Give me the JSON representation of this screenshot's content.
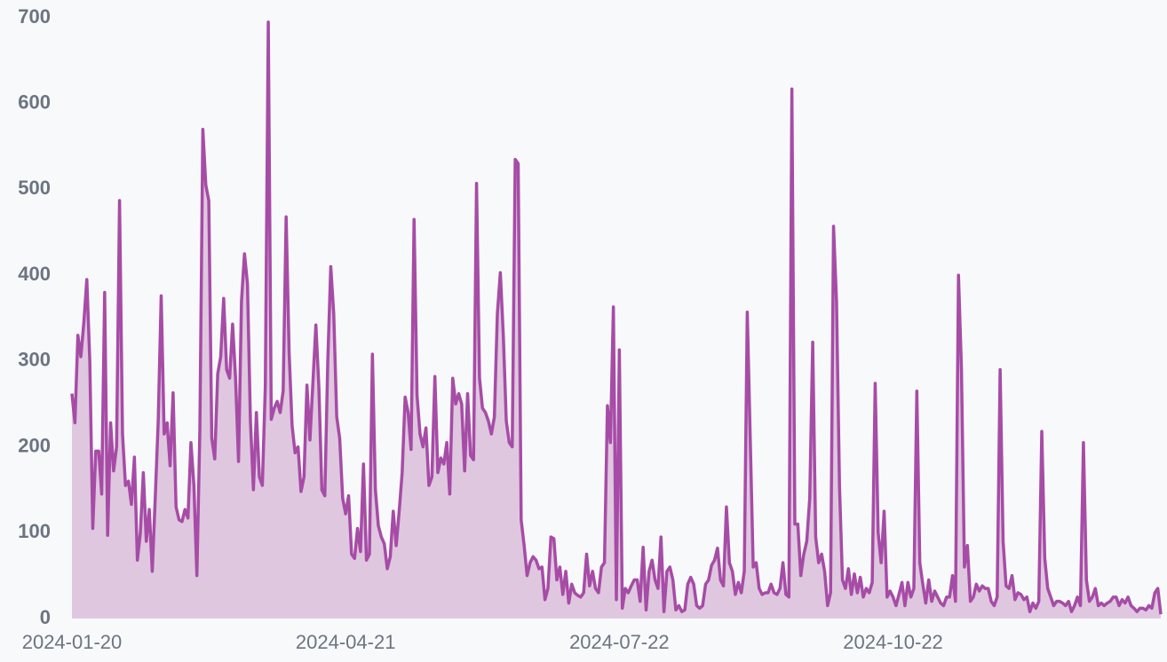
{
  "chart_data": {
    "type": "area",
    "color": "#a64ca6",
    "fill_color": "#dfc7e0",
    "xlim": [
      "2024-01-20",
      "2025-01-20"
    ],
    "xticks": [
      "2024-01-20",
      "2024-04-21",
      "2024-07-22",
      "2024-10-22"
    ],
    "ylim": [
      0,
      700
    ],
    "yticks": [
      0,
      100,
      200,
      300,
      400,
      500,
      600,
      700
    ],
    "x": [
      "2024-01-20",
      "2024-01-21",
      "2024-01-22",
      "2024-01-23",
      "2024-01-24",
      "2024-01-25",
      "2024-01-26",
      "2024-01-27",
      "2024-01-28",
      "2024-01-29",
      "2024-01-30",
      "2024-01-31",
      "2024-02-01",
      "2024-02-02",
      "2024-02-03",
      "2024-02-04",
      "2024-02-05",
      "2024-02-06",
      "2024-02-07",
      "2024-02-08",
      "2024-02-09",
      "2024-02-10",
      "2024-02-11",
      "2024-02-12",
      "2024-02-13",
      "2024-02-14",
      "2024-02-15",
      "2024-02-16",
      "2024-02-17",
      "2024-02-18",
      "2024-02-19",
      "2024-02-20",
      "2024-02-21",
      "2024-02-22",
      "2024-02-23",
      "2024-02-24",
      "2024-02-25",
      "2024-02-26",
      "2024-02-27",
      "2024-02-28",
      "2024-02-29",
      "2024-03-01",
      "2024-03-02",
      "2024-03-03",
      "2024-03-04",
      "2024-03-05",
      "2024-03-06",
      "2024-03-07",
      "2024-03-08",
      "2024-03-09",
      "2024-03-10",
      "2024-03-11",
      "2024-03-12",
      "2024-03-13",
      "2024-03-14",
      "2024-03-15",
      "2024-03-16",
      "2024-03-17",
      "2024-03-18",
      "2024-03-19",
      "2024-03-20",
      "2024-03-21",
      "2024-03-22",
      "2024-03-23",
      "2024-03-24",
      "2024-03-25",
      "2024-03-26",
      "2024-03-27",
      "2024-03-28",
      "2024-03-29",
      "2024-03-30",
      "2024-03-31",
      "2024-04-01",
      "2024-04-02",
      "2024-04-03",
      "2024-04-04",
      "2024-04-05",
      "2024-04-06",
      "2024-04-07",
      "2024-04-08",
      "2024-04-09",
      "2024-04-10",
      "2024-04-11",
      "2024-04-12",
      "2024-04-13",
      "2024-04-14",
      "2024-04-15",
      "2024-04-16",
      "2024-04-17",
      "2024-04-18",
      "2024-04-19",
      "2024-04-20",
      "2024-04-21",
      "2024-04-22",
      "2024-04-23",
      "2024-04-24",
      "2024-04-25",
      "2024-04-26",
      "2024-04-27",
      "2024-04-28",
      "2024-04-29",
      "2024-04-30",
      "2024-05-01",
      "2024-05-02",
      "2024-05-03",
      "2024-05-04",
      "2024-05-05",
      "2024-05-06",
      "2024-05-07",
      "2024-05-08",
      "2024-05-09",
      "2024-05-10",
      "2024-05-11",
      "2024-05-12",
      "2024-05-13",
      "2024-05-14",
      "2024-05-15",
      "2024-05-16",
      "2024-05-17",
      "2024-05-18",
      "2024-05-19",
      "2024-05-20",
      "2024-05-21",
      "2024-05-22",
      "2024-05-23",
      "2024-05-24",
      "2024-05-25",
      "2024-05-26",
      "2024-05-27",
      "2024-05-28",
      "2024-05-29",
      "2024-05-30",
      "2024-05-31",
      "2024-06-01",
      "2024-06-02",
      "2024-06-03",
      "2024-06-04",
      "2024-06-05",
      "2024-06-06",
      "2024-06-07",
      "2024-06-08",
      "2024-06-09",
      "2024-06-10",
      "2024-06-11",
      "2024-06-12",
      "2024-06-13",
      "2024-06-14",
      "2024-06-15",
      "2024-06-16",
      "2024-06-17",
      "2024-06-18",
      "2024-06-19",
      "2024-06-20",
      "2024-06-21",
      "2024-06-22",
      "2024-06-23",
      "2024-06-24",
      "2024-06-25",
      "2024-06-26",
      "2024-06-27",
      "2024-06-28",
      "2024-06-29",
      "2024-06-30",
      "2024-07-01",
      "2024-07-02",
      "2024-07-03",
      "2024-07-04",
      "2024-07-05",
      "2024-07-06",
      "2024-07-07",
      "2024-07-08",
      "2024-07-09",
      "2024-07-10",
      "2024-07-11",
      "2024-07-12",
      "2024-07-13",
      "2024-07-14",
      "2024-07-15",
      "2024-07-16",
      "2024-07-17",
      "2024-07-18",
      "2024-07-19",
      "2024-07-20",
      "2024-07-21",
      "2024-07-22",
      "2024-07-23",
      "2024-07-24",
      "2024-07-25",
      "2024-07-26",
      "2024-07-27",
      "2024-07-28",
      "2024-07-29",
      "2024-07-30",
      "2024-07-31",
      "2024-08-01",
      "2024-08-02",
      "2024-08-03",
      "2024-08-04",
      "2024-08-05",
      "2024-08-06",
      "2024-08-07",
      "2024-08-08",
      "2024-08-09",
      "2024-08-10",
      "2024-08-11",
      "2024-08-12",
      "2024-08-13",
      "2024-08-14",
      "2024-08-15",
      "2024-08-16",
      "2024-08-17",
      "2024-08-18",
      "2024-08-19",
      "2024-08-20",
      "2024-08-21",
      "2024-08-22",
      "2024-08-23",
      "2024-08-24",
      "2024-08-25",
      "2024-08-26",
      "2024-08-27",
      "2024-08-28",
      "2024-08-29",
      "2024-08-30",
      "2024-08-31",
      "2024-09-01",
      "2024-09-02",
      "2024-09-03",
      "2024-09-04",
      "2024-09-05",
      "2024-09-06",
      "2024-09-07",
      "2024-09-08",
      "2024-09-09",
      "2024-09-10",
      "2024-09-11",
      "2024-09-12",
      "2024-09-13",
      "2024-09-14",
      "2024-09-15",
      "2024-09-16",
      "2024-09-17",
      "2024-09-18",
      "2024-09-19",
      "2024-09-20",
      "2024-09-21",
      "2024-09-22",
      "2024-09-23",
      "2024-09-24",
      "2024-09-25",
      "2024-09-26",
      "2024-09-27",
      "2024-09-28",
      "2024-09-29",
      "2024-09-30",
      "2024-10-01",
      "2024-10-02",
      "2024-10-03",
      "2024-10-04",
      "2024-10-05",
      "2024-10-06",
      "2024-10-07",
      "2024-10-08",
      "2024-10-09",
      "2024-10-10",
      "2024-10-11",
      "2024-10-12",
      "2024-10-13",
      "2024-10-14",
      "2024-10-15",
      "2024-10-16",
      "2024-10-17",
      "2024-10-18",
      "2024-10-19",
      "2024-10-20",
      "2024-10-21",
      "2024-10-22",
      "2024-10-23",
      "2024-10-24",
      "2024-10-25",
      "2024-10-26",
      "2024-10-27",
      "2024-10-28",
      "2024-10-29",
      "2024-10-30",
      "2024-10-31",
      "2024-11-01",
      "2024-11-02",
      "2024-11-03",
      "2024-11-04",
      "2024-11-05",
      "2024-11-06",
      "2024-11-07",
      "2024-11-08",
      "2024-11-09",
      "2024-11-10",
      "2024-11-11",
      "2024-11-12",
      "2024-11-13",
      "2024-11-14",
      "2024-11-15",
      "2024-11-16",
      "2024-11-17",
      "2024-11-18",
      "2024-11-19",
      "2024-11-20",
      "2024-11-21",
      "2024-11-22",
      "2024-11-23",
      "2024-11-24",
      "2024-11-25",
      "2024-11-26",
      "2024-11-27",
      "2024-11-28",
      "2024-11-29",
      "2024-11-30",
      "2024-12-01",
      "2024-12-02",
      "2024-12-03",
      "2024-12-04",
      "2024-12-05",
      "2024-12-06",
      "2024-12-07",
      "2024-12-08",
      "2024-12-09",
      "2024-12-10",
      "2024-12-11",
      "2024-12-12",
      "2024-12-13",
      "2024-12-14",
      "2024-12-15",
      "2024-12-16",
      "2024-12-17",
      "2024-12-18",
      "2024-12-19",
      "2024-12-20",
      "2024-12-21",
      "2024-12-22",
      "2024-12-23",
      "2024-12-24",
      "2024-12-25",
      "2024-12-26",
      "2024-12-27",
      "2024-12-28",
      "2024-12-29",
      "2024-12-30",
      "2024-12-31",
      "2025-01-01",
      "2025-01-02",
      "2025-01-03",
      "2025-01-04",
      "2025-01-05",
      "2025-01-06",
      "2025-01-07",
      "2025-01-08",
      "2025-01-09",
      "2025-01-10",
      "2025-01-11",
      "2025-01-12",
      "2025-01-13",
      "2025-01-14",
      "2025-01-15",
      "2025-01-16",
      "2025-01-17",
      "2025-01-18",
      "2025-01-19",
      "2025-01-20"
    ],
    "values": [
      262,
      228,
      330,
      305,
      345,
      395,
      300,
      105,
      195,
      195,
      145,
      380,
      97,
      228,
      172,
      200,
      487,
      215,
      155,
      160,
      133,
      188,
      68,
      100,
      170,
      90,
      127,
      55,
      140,
      230,
      376,
      215,
      228,
      178,
      263,
      130,
      115,
      113,
      127,
      117,
      205,
      155,
      50,
      220,
      570,
      505,
      487,
      210,
      186,
      285,
      305,
      373,
      290,
      280,
      343,
      280,
      183,
      370,
      425,
      390,
      230,
      150,
      240,
      165,
      155,
      270,
      695,
      232,
      245,
      253,
      240,
      265,
      468,
      310,
      225,
      193,
      200,
      148,
      165,
      272,
      208,
      275,
      342,
      270,
      150,
      143,
      300,
      410,
      355,
      235,
      210,
      140,
      122,
      143,
      75,
      70,
      105,
      78,
      180,
      68,
      75,
      308,
      150,
      108,
      95,
      87,
      58,
      72,
      125,
      85,
      125,
      170,
      258,
      240,
      197,
      465,
      260,
      215,
      200,
      222,
      155,
      165,
      282,
      170,
      187,
      180,
      205,
      145,
      280,
      250,
      262,
      250,
      172,
      262,
      190,
      185,
      507,
      280,
      245,
      240,
      230,
      215,
      235,
      355,
      403,
      330,
      230,
      205,
      200,
      535,
      530,
      115,
      85,
      50,
      65,
      72,
      68,
      58,
      60,
      22,
      35,
      95,
      93,
      45,
      60,
      28,
      55,
      18,
      40,
      30,
      27,
      25,
      30,
      75,
      38,
      55,
      35,
      30,
      60,
      65,
      248,
      205,
      363,
      22,
      313,
      12,
      35,
      30,
      38,
      45,
      45,
      20,
      83,
      10,
      55,
      68,
      45,
      35,
      95,
      8,
      55,
      60,
      45,
      10,
      15,
      8,
      10,
      40,
      48,
      40,
      15,
      12,
      15,
      40,
      45,
      62,
      68,
      82,
      45,
      38,
      130,
      65,
      55,
      28,
      42,
      30,
      55,
      357,
      210,
      60,
      65,
      35,
      28,
      30,
      30,
      40,
      30,
      28,
      35,
      65,
      28,
      25,
      617,
      110,
      110,
      50,
      75,
      90,
      140,
      322,
      95,
      65,
      75,
      55,
      15,
      30,
      457,
      370,
      155,
      45,
      35,
      58,
      28,
      52,
      30,
      48,
      25,
      35,
      30,
      42,
      274,
      100,
      65,
      125,
      25,
      32,
      25,
      15,
      28,
      42,
      15,
      42,
      25,
      35,
      265,
      65,
      40,
      18,
      45,
      20,
      32,
      25,
      18,
      15,
      25,
      25,
      50,
      20,
      400,
      290,
      60,
      85,
      20,
      25,
      40,
      32,
      38,
      35,
      35,
      20,
      15,
      25,
      290,
      90,
      38,
      35,
      50,
      22,
      30,
      28,
      22,
      25,
      8,
      18,
      12,
      20,
      218,
      70,
      35,
      25,
      15,
      20,
      20,
      18,
      15,
      20,
      8,
      15,
      25,
      15,
      205,
      45,
      20,
      25,
      35,
      15,
      18,
      15,
      18,
      20,
      25,
      25,
      15,
      22,
      18,
      25,
      15,
      12,
      8,
      12,
      12,
      10,
      15,
      12,
      30,
      35,
      5
    ]
  }
}
